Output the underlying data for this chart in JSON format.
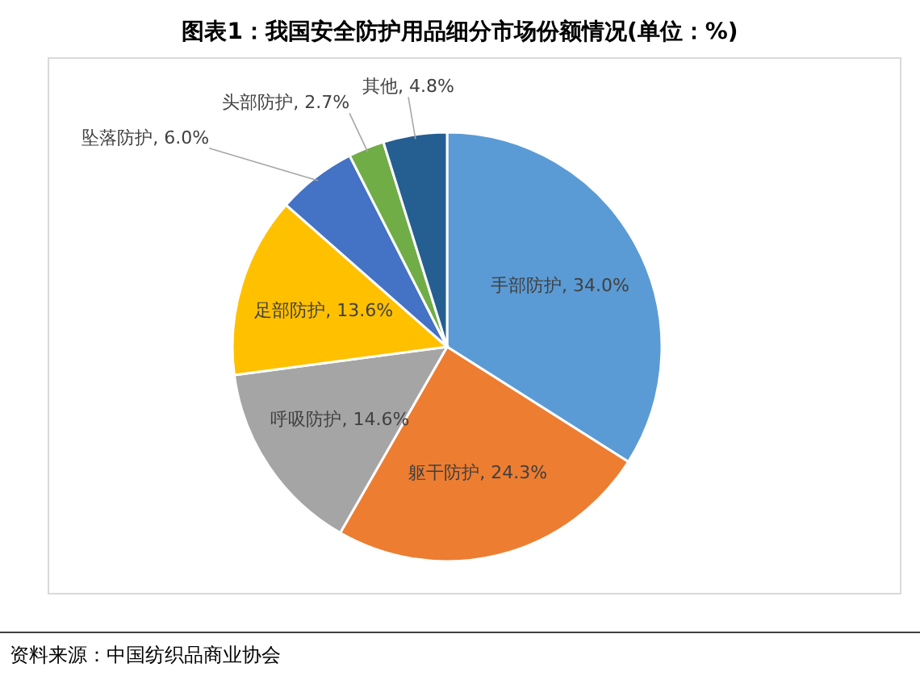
{
  "chart_data": {
    "type": "pie",
    "title": "图表1：我国安全防护用品细分市场份额情况(单位：%)",
    "categories": [
      "手部防护",
      "躯干防护",
      "呼吸防护",
      "足部防护",
      "坠落防护",
      "头部防护",
      "其他"
    ],
    "values": [
      34.0,
      24.3,
      14.6,
      13.6,
      6.0,
      2.7,
      4.8
    ],
    "colors": [
      "#5b9bd5",
      "#ed7d31",
      "#a5a5a5",
      "#ffc000",
      "#4472c4",
      "#70ad47",
      "#255e91"
    ],
    "value_labels": [
      "34.0%",
      "24.3%",
      "14.6%",
      "13.6%",
      "6.0%",
      "2.7%",
      "4.8%"
    ],
    "annotations": [
      "资料来源：中国纺织品商业协会"
    ]
  }
}
